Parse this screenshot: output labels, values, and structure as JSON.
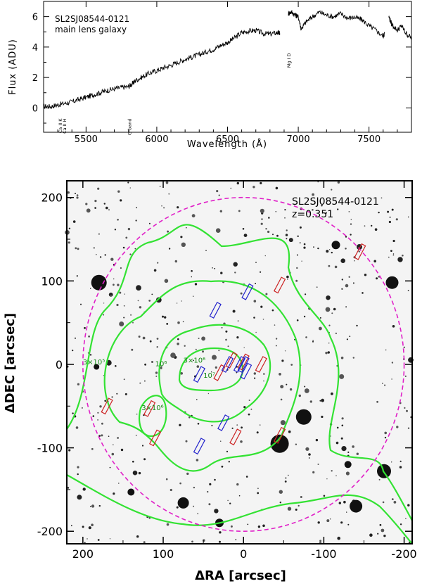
{
  "chart_data": [
    {
      "type": "line",
      "inset_label": "SL2SJ08544-0121",
      "inset_sublabel": "main lens galaxy",
      "xlabel": "Wavelength (Å)",
      "ylabel": "Flux (ADU)",
      "xlim": [
        5200,
        7800
      ],
      "ylim": [
        -1.6,
        7.0
      ],
      "xticks": [
        5500,
        6000,
        6500,
        7000,
        7500
      ],
      "yticks": [
        0,
        2,
        4,
        6
      ],
      "line_annotations": [
        {
          "label": "Ca II K",
          "x": 5320,
          "y": -0.7
        },
        {
          "label": "Ca II H",
          "x": 5350,
          "y": -0.7
        },
        {
          "label": "G-band",
          "x": 5810,
          "y": -0.7
        },
        {
          "label": "Mg I D",
          "x": 6935,
          "y": 3.6
        }
      ],
      "series": [
        {
          "x": [
            5200,
            5250,
            5300,
            5350,
            5400,
            5450,
            5500,
            5550,
            5600,
            5650,
            5700,
            5750,
            5800,
            5830,
            5850,
            5900,
            5950,
            6000,
            6050,
            6100,
            6150,
            6200,
            6250,
            6300,
            6350,
            6400,
            6450,
            6500,
            6550,
            6600,
            6650,
            6700,
            6750,
            6800,
            6850,
            6870
          ],
          "y": [
            0.1,
            0.1,
            0.2,
            0.3,
            0.4,
            0.55,
            0.7,
            0.85,
            1.0,
            1.15,
            1.25,
            1.35,
            1.4,
            1.6,
            1.8,
            2.05,
            2.3,
            2.45,
            2.65,
            2.8,
            3.0,
            3.2,
            3.35,
            3.5,
            3.7,
            3.85,
            4.1,
            4.3,
            4.6,
            4.95,
            5.05,
            5.1,
            4.9,
            4.85,
            4.95,
            4.9
          ]
        },
        {
          "x": [
            6930,
            6950,
            6980,
            7000,
            7020,
            7050,
            7100,
            7150,
            7200,
            7250,
            7300,
            7350,
            7400,
            7450,
            7500,
            7550,
            7600,
            7610
          ],
          "y": [
            6.2,
            6.3,
            6.1,
            6.0,
            5.2,
            5.6,
            6.0,
            6.3,
            6.1,
            6.0,
            6.2,
            5.9,
            5.95,
            5.8,
            5.4,
            5.1,
            4.7,
            4.9
          ]
        },
        {
          "x": [
            7640,
            7660,
            7700,
            7730,
            7760,
            7800
          ],
          "y": [
            6.0,
            5.5,
            5.1,
            5.4,
            4.9,
            4.6
          ]
        }
      ]
    },
    {
      "type": "scatter",
      "xlabel": "ΔRA [arcsec]",
      "ylabel": "ΔDEC [arcsec]",
      "xlim": [
        220,
        -210
      ],
      "ylim": [
        -215,
        220
      ],
      "xticks": [
        200,
        100,
        0,
        -100,
        -200
      ],
      "yticks": [
        200,
        100,
        0,
        -100,
        -200
      ],
      "field_label": "SL2SJ08544-0121",
      "redshift_label": "z=0.351",
      "circle_radius": 200,
      "contour_labels": [
        {
          "text": "3×10⁵",
          "x": 200,
          "y": 0
        },
        {
          "text": "10⁶",
          "x": 110,
          "y": -2
        },
        {
          "text": "3×10⁶",
          "x": 75,
          "y": 2
        },
        {
          "text": "10⁷",
          "x": 50,
          "y": -16
        },
        {
          "text": "3×10⁶",
          "x": 127,
          "y": -55
        }
      ],
      "red_slits": [
        [
          -145,
          135
        ],
        [
          -45,
          95
        ],
        [
          15,
          5
        ],
        [
          -22,
          0
        ],
        [
          0,
          3
        ],
        [
          30,
          -10
        ],
        [
          170,
          -50
        ],
        [
          117,
          -53
        ],
        [
          110,
          -88
        ],
        [
          10,
          -87
        ],
        [
          -45,
          -85
        ]
      ],
      "blue_slits": [
        [
          -5,
          87
        ],
        [
          35,
          65
        ],
        [
          20,
          0
        ],
        [
          5,
          0
        ],
        [
          0,
          0
        ],
        [
          -3,
          -8
        ],
        [
          55,
          -12
        ],
        [
          25,
          -70
        ],
        [
          55,
          -98
        ]
      ]
    }
  ],
  "colors": {
    "contour": "#33e233",
    "circle": "#e020c8",
    "red_slit": "#cc2222",
    "blue_slit": "#2222cc"
  }
}
